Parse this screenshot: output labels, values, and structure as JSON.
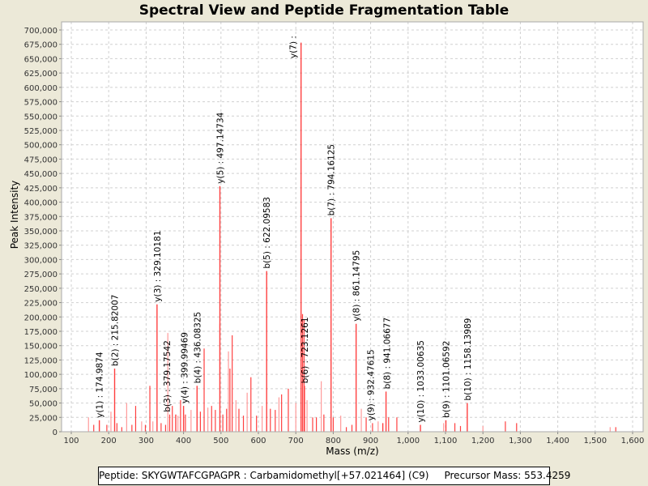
{
  "chart_data": {
    "type": "bar",
    "title": "Spectral View and Peptide Fragmentation Table",
    "xlabel": "Mass (m/z)",
    "ylabel": "Peak Intensity",
    "xlim": [
      75,
      1610
    ],
    "ylim": [
      0,
      710000
    ],
    "xticks": [
      100,
      200,
      300,
      400,
      500,
      600,
      700,
      800,
      900,
      1000,
      1100,
      1200,
      1300,
      1400,
      1500,
      1600
    ],
    "ytick_step": 25000,
    "grid": true,
    "annotated_peaks": [
      {
        "label": "y(1) : 174.9874",
        "mz": 174.9874,
        "intensity": 20000
      },
      {
        "label": "b(2) : 215.82007",
        "mz": 215.82007,
        "intensity": 110000
      },
      {
        "label": "y(3) : 329.10181",
        "mz": 329.10181,
        "intensity": 222000
      },
      {
        "label": "b(3) : 379.17542",
        "mz": 379.17542,
        "intensity": 30000
      },
      {
        "label": "y(4) : 399.99469",
        "mz": 399.99469,
        "intensity": 45000
      },
      {
        "label": "b(4) : 436.08325",
        "mz": 436.08325,
        "intensity": 80000
      },
      {
        "label": "y(5) : 497.14734",
        "mz": 497.14734,
        "intensity": 428000
      },
      {
        "label": "b(5) : 622.09583",
        "mz": 622.09583,
        "intensity": 280000
      },
      {
        "label": "y(7) :",
        "mz": 714.0,
        "intensity": 678000
      },
      {
        "label": "b(6) : 723.1261",
        "mz": 723.1261,
        "intensity": 80000
      },
      {
        "label": "b(7) : 794.16125",
        "mz": 794.16125,
        "intensity": 372000
      },
      {
        "label": "y(8) : 861.14795",
        "mz": 861.14795,
        "intensity": 188000
      },
      {
        "label": "y(9) : 932.47615",
        "mz": 932.47615,
        "intensity": 15000
      },
      {
        "label": "b(8) : 941.06677",
        "mz": 941.06677,
        "intensity": 70000
      },
      {
        "label": "y(10) : 1033.00635",
        "mz": 1033.00635,
        "intensity": 12000
      },
      {
        "label": "b(9) : 1101.06592",
        "mz": 1101.06592,
        "intensity": 20000
      },
      {
        "label": "b(10) : 1158.13989",
        "mz": 1158.13989,
        "intensity": 50000
      }
    ],
    "other_peaks": [
      [
        146,
        25000
      ],
      [
        160,
        12000
      ],
      [
        195,
        12000
      ],
      [
        206,
        35000
      ],
      [
        222,
        15000
      ],
      [
        235,
        8000
      ],
      [
        248,
        50000
      ],
      [
        262,
        12000
      ],
      [
        272,
        45000
      ],
      [
        288,
        18000
      ],
      [
        298,
        12000
      ],
      [
        310,
        80000
      ],
      [
        318,
        18000
      ],
      [
        340,
        15000
      ],
      [
        352,
        12000
      ],
      [
        358,
        172000
      ],
      [
        363,
        30000
      ],
      [
        370,
        45000
      ],
      [
        385,
        28000
      ],
      [
        392,
        55000
      ],
      [
        405,
        30000
      ],
      [
        420,
        38000
      ],
      [
        445,
        35000
      ],
      [
        455,
        145000
      ],
      [
        465,
        42000
      ],
      [
        475,
        45000
      ],
      [
        485,
        38000
      ],
      [
        497,
        188000
      ],
      [
        505,
        30000
      ],
      [
        515,
        40000
      ],
      [
        520,
        140000
      ],
      [
        524,
        110000
      ],
      [
        530,
        168000
      ],
      [
        540,
        55000
      ],
      [
        548,
        40000
      ],
      [
        560,
        28000
      ],
      [
        570,
        68000
      ],
      [
        580,
        95000
      ],
      [
        595,
        28000
      ],
      [
        610,
        45000
      ],
      [
        632,
        40000
      ],
      [
        645,
        38000
      ],
      [
        655,
        60000
      ],
      [
        662,
        65000
      ],
      [
        680,
        75000
      ],
      [
        700,
        50000
      ],
      [
        718,
        205000
      ],
      [
        722,
        195000
      ],
      [
        730,
        55000
      ],
      [
        745,
        25000
      ],
      [
        755,
        25000
      ],
      [
        768,
        88000
      ],
      [
        775,
        30000
      ],
      [
        800,
        25000
      ],
      [
        820,
        28000
      ],
      [
        835,
        8000
      ],
      [
        850,
        12000
      ],
      [
        875,
        40000
      ],
      [
        888,
        25000
      ],
      [
        905,
        15000
      ],
      [
        920,
        18000
      ],
      [
        948,
        25000
      ],
      [
        970,
        25000
      ],
      [
        1095,
        15000
      ],
      [
        1125,
        15000
      ],
      [
        1140,
        10000
      ],
      [
        1200,
        10000
      ],
      [
        1260,
        18000
      ],
      [
        1290,
        15000
      ],
      [
        1540,
        8000
      ],
      [
        1555,
        8000
      ]
    ]
  },
  "footer": {
    "peptide": "Peptide: SKYGWTAFCGPAGPR : Carbamidomethyl[+57.021464] (C9)",
    "precursor": "Precursor Mass: 553.4259"
  },
  "colors": {
    "peak": "#ff4040",
    "peak_light": "#ff9a9a",
    "grid": "#d0d0d0"
  }
}
